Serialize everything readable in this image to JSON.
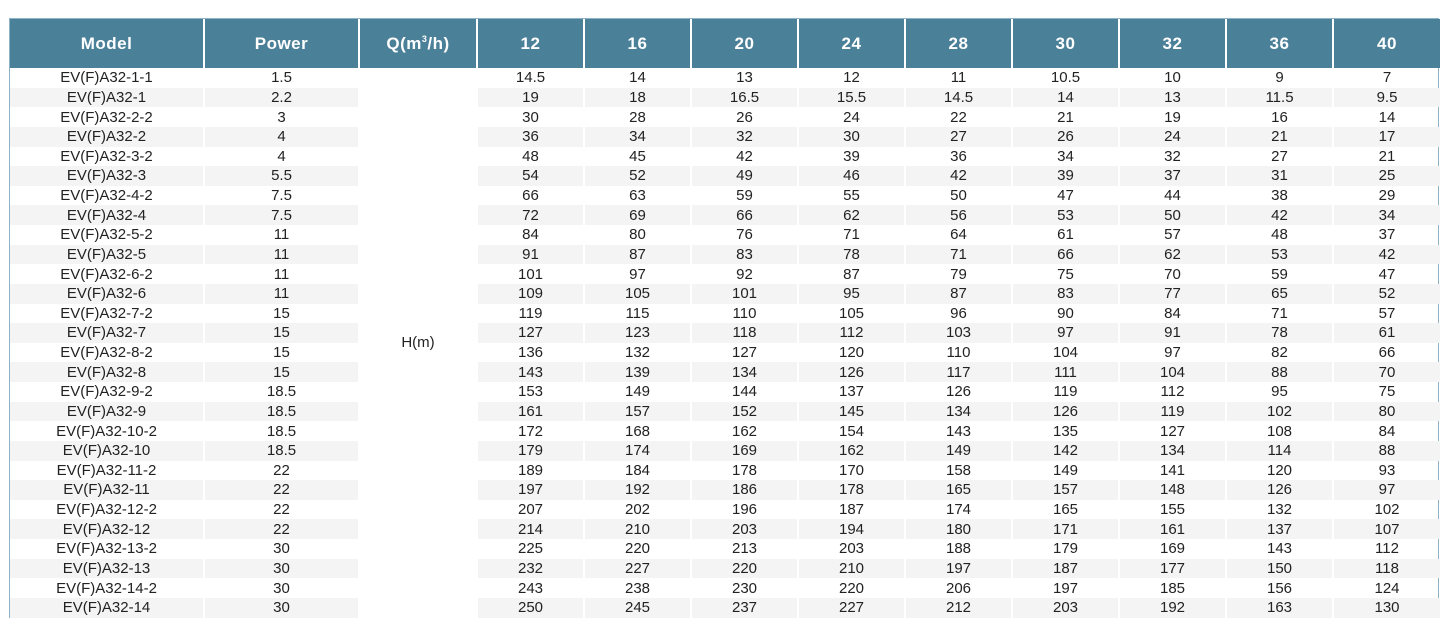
{
  "header": {
    "model": "Model",
    "power": "Power",
    "q_label": "Q(m",
    "q_sup": "3",
    "q_suffix": "/h)",
    "flows": [
      "12",
      "16",
      "20",
      "24",
      "28",
      "30",
      "32",
      "36",
      "40"
    ]
  },
  "h_label": "H(m)",
  "colors": {
    "header_bg": "#4b8099",
    "stripe": "#f4f4f4",
    "border": "#8fb3c6"
  },
  "rows": [
    {
      "model": "EV(F)A32-1-1",
      "power": "1.5",
      "h": [
        "14.5",
        "14",
        "13",
        "12",
        "11",
        "10.5",
        "10",
        "9",
        "7"
      ]
    },
    {
      "model": "EV(F)A32-1",
      "power": "2.2",
      "h": [
        "19",
        "18",
        "16.5",
        "15.5",
        "14.5",
        "14",
        "13",
        "11.5",
        "9.5"
      ]
    },
    {
      "model": "EV(F)A32-2-2",
      "power": "3",
      "h": [
        "30",
        "28",
        "26",
        "24",
        "22",
        "21",
        "19",
        "16",
        "14"
      ]
    },
    {
      "model": "EV(F)A32-2",
      "power": "4",
      "h": [
        "36",
        "34",
        "32",
        "30",
        "27",
        "26",
        "24",
        "21",
        "17"
      ]
    },
    {
      "model": "EV(F)A32-3-2",
      "power": "4",
      "h": [
        "48",
        "45",
        "42",
        "39",
        "36",
        "34",
        "32",
        "27",
        "21"
      ]
    },
    {
      "model": "EV(F)A32-3",
      "power": "5.5",
      "h": [
        "54",
        "52",
        "49",
        "46",
        "42",
        "39",
        "37",
        "31",
        "25"
      ]
    },
    {
      "model": "EV(F)A32-4-2",
      "power": "7.5",
      "h": [
        "66",
        "63",
        "59",
        "55",
        "50",
        "47",
        "44",
        "38",
        "29"
      ]
    },
    {
      "model": "EV(F)A32-4",
      "power": "7.5",
      "h": [
        "72",
        "69",
        "66",
        "62",
        "56",
        "53",
        "50",
        "42",
        "34"
      ]
    },
    {
      "model": "EV(F)A32-5-2",
      "power": "11",
      "h": [
        "84",
        "80",
        "76",
        "71",
        "64",
        "61",
        "57",
        "48",
        "37"
      ]
    },
    {
      "model": "EV(F)A32-5",
      "power": "11",
      "h": [
        "91",
        "87",
        "83",
        "78",
        "71",
        "66",
        "62",
        "53",
        "42"
      ]
    },
    {
      "model": "EV(F)A32-6-2",
      "power": "11",
      "h": [
        "101",
        "97",
        "92",
        "87",
        "79",
        "75",
        "70",
        "59",
        "47"
      ]
    },
    {
      "model": "EV(F)A32-6",
      "power": "11",
      "h": [
        "109",
        "105",
        "101",
        "95",
        "87",
        "83",
        "77",
        "65",
        "52"
      ]
    },
    {
      "model": "EV(F)A32-7-2",
      "power": "15",
      "h": [
        "119",
        "115",
        "110",
        "105",
        "96",
        "90",
        "84",
        "71",
        "57"
      ]
    },
    {
      "model": "EV(F)A32-7",
      "power": "15",
      "h": [
        "127",
        "123",
        "118",
        "112",
        "103",
        "97",
        "91",
        "78",
        "61"
      ]
    },
    {
      "model": "EV(F)A32-8-2",
      "power": "15",
      "h": [
        "136",
        "132",
        "127",
        "120",
        "110",
        "104",
        "97",
        "82",
        "66"
      ]
    },
    {
      "model": "EV(F)A32-8",
      "power": "15",
      "h": [
        "143",
        "139",
        "134",
        "126",
        "117",
        "111",
        "104",
        "88",
        "70"
      ]
    },
    {
      "model": "EV(F)A32-9-2",
      "power": "18.5",
      "h": [
        "153",
        "149",
        "144",
        "137",
        "126",
        "119",
        "112",
        "95",
        "75"
      ]
    },
    {
      "model": "EV(F)A32-9",
      "power": "18.5",
      "h": [
        "161",
        "157",
        "152",
        "145",
        "134",
        "126",
        "119",
        "102",
        "80"
      ]
    },
    {
      "model": "EV(F)A32-10-2",
      "power": "18.5",
      "h": [
        "172",
        "168",
        "162",
        "154",
        "143",
        "135",
        "127",
        "108",
        "84"
      ]
    },
    {
      "model": "EV(F)A32-10",
      "power": "18.5",
      "h": [
        "179",
        "174",
        "169",
        "162",
        "149",
        "142",
        "134",
        "114",
        "88"
      ]
    },
    {
      "model": "EV(F)A32-11-2",
      "power": "22",
      "h": [
        "189",
        "184",
        "178",
        "170",
        "158",
        "149",
        "141",
        "120",
        "93"
      ]
    },
    {
      "model": "EV(F)A32-11",
      "power": "22",
      "h": [
        "197",
        "192",
        "186",
        "178",
        "165",
        "157",
        "148",
        "126",
        "97"
      ]
    },
    {
      "model": "EV(F)A32-12-2",
      "power": "22",
      "h": [
        "207",
        "202",
        "196",
        "187",
        "174",
        "165",
        "155",
        "132",
        "102"
      ]
    },
    {
      "model": "EV(F)A32-12",
      "power": "22",
      "h": [
        "214",
        "210",
        "203",
        "194",
        "180",
        "171",
        "161",
        "137",
        "107"
      ]
    },
    {
      "model": "EV(F)A32-13-2",
      "power": "30",
      "h": [
        "225",
        "220",
        "213",
        "203",
        "188",
        "179",
        "169",
        "143",
        "112"
      ]
    },
    {
      "model": "EV(F)A32-13",
      "power": "30",
      "h": [
        "232",
        "227",
        "220",
        "210",
        "197",
        "187",
        "177",
        "150",
        "118"
      ]
    },
    {
      "model": "EV(F)A32-14-2",
      "power": "30",
      "h": [
        "243",
        "238",
        "230",
        "220",
        "206",
        "197",
        "185",
        "156",
        "124"
      ]
    },
    {
      "model": "EV(F)A32-14",
      "power": "30",
      "h": [
        "250",
        "245",
        "237",
        "227",
        "212",
        "203",
        "192",
        "163",
        "130"
      ]
    }
  ]
}
